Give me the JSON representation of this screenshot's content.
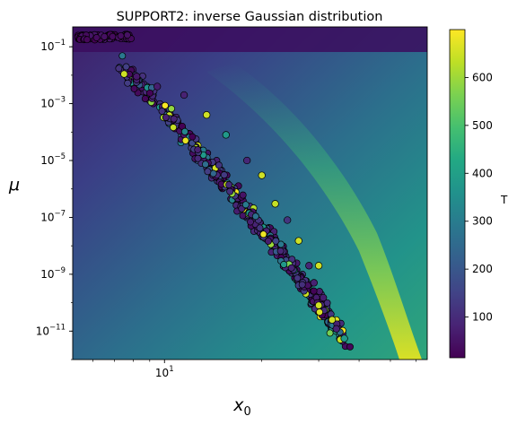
{
  "chart_data": {
    "type": "scatter",
    "title": "SUPPORT2: inverse Gaussian distribution",
    "xlabel": "x",
    "xlabel_sub": "0",
    "ylabel": "μ",
    "x_scale": "log",
    "y_scale": "log",
    "xlim": [
      5.2,
      65
    ],
    "ylim": [
      1e-12,
      0.5
    ],
    "x_ticks": [
      {
        "value": 10,
        "base": "10",
        "exp": "1"
      }
    ],
    "y_ticks": [
      {
        "value": 0.1,
        "base": "10",
        "exp": "−1"
      },
      {
        "value": 0.001,
        "base": "10",
        "exp": "−3"
      },
      {
        "value": 1e-05,
        "base": "10",
        "exp": "−5"
      },
      {
        "value": 1e-07,
        "base": "10",
        "exp": "−7"
      },
      {
        "value": 1e-09,
        "base": "10",
        "exp": "−9"
      },
      {
        "value": 1e-11,
        "base": "10",
        "exp": "−11"
      }
    ],
    "background": "heatmap (viridis), brightening toward lower right",
    "colorbar": {
      "label": "T",
      "colormap": "viridis",
      "range": [
        15,
        700
      ],
      "ticks": [
        "100",
        "200",
        "300",
        "400",
        "500",
        "600"
      ],
      "tick_values": [
        100,
        200,
        300,
        400,
        500,
        600
      ]
    },
    "series": [
      {
        "marker": "circle",
        "edge_color": "#000000",
        "top_band": {
          "x_range": [
            5.4,
            7.9
          ],
          "mu_range": [
            0.17,
            0.26
          ]
        },
        "main_cluster": {
          "x_range": [
            7.2,
            36
          ],
          "mu_range": [
            5e-12,
            0.03
          ],
          "points": [
            {
              "x": 7.5,
              "mu": 0.011,
              "T": 650
            },
            {
              "x": 8.2,
              "mu": 0.009,
              "T": 60
            },
            {
              "x": 9.5,
              "mu": 0.004,
              "T": 70
            },
            {
              "x": 11.5,
              "mu": 0.002,
              "T": 80
            },
            {
              "x": 13.5,
              "mu": 0.0004,
              "T": 650
            },
            {
              "x": 15.5,
              "mu": 8e-05,
              "T": 380
            },
            {
              "x": 18,
              "mu": 1e-05,
              "T": 90
            },
            {
              "x": 20,
              "mu": 3e-06,
              "T": 650
            },
            {
              "x": 22,
              "mu": 3e-07,
              "T": 640
            },
            {
              "x": 24,
              "mu": 8e-08,
              "T": 120
            },
            {
              "x": 26,
              "mu": 1.5e-08,
              "T": 650
            },
            {
              "x": 28,
              "mu": 2e-09,
              "T": 90
            },
            {
              "x": 30,
              "mu": 2e-09,
              "T": 650
            },
            {
              "x": 29,
              "mu": 5e-10,
              "T": 80
            },
            {
              "x": 31,
              "mu": 1.5e-10,
              "T": 70
            },
            {
              "x": 30,
              "mu": 8e-11,
              "T": 650
            },
            {
              "x": 33,
              "mu": 2.5e-11,
              "T": 650
            },
            {
              "x": 34,
              "mu": 1.2e-11,
              "T": 80
            },
            {
              "x": 35,
              "mu": 5e-12,
              "T": 640
            },
            {
              "x": 36,
              "mu": 5.5e-12,
              "T": 380
            }
          ]
        }
      }
    ]
  }
}
